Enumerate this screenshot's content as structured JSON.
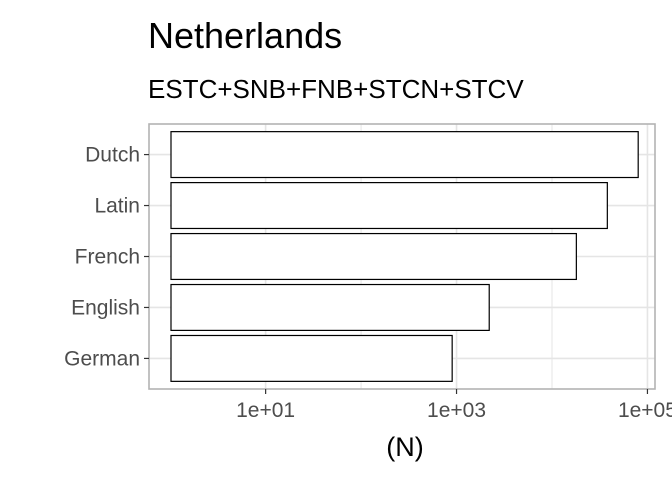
{
  "chart_data": {
    "type": "bar",
    "orientation": "horizontal",
    "title": "Netherlands",
    "subtitle": "ESTC+SNB+FNB+STCN+STCV",
    "xlabel": "(N)",
    "ylabel": "",
    "x_scale": "log10",
    "xlim": [
      0.6,
      120000
    ],
    "x_ticks": [
      10,
      1000,
      100000
    ],
    "x_tick_labels": [
      "1e+01",
      "1e+03",
      "1e+05"
    ],
    "categories": [
      "Dutch",
      "Latin",
      "French",
      "English",
      "German"
    ],
    "values": [
      80000,
      38000,
      18000,
      2200,
      900
    ],
    "bar_fill": "#ffffff",
    "bar_stroke": "#000000",
    "grid": true,
    "grid_color": "#e5e5e5",
    "panel_border_color": "#b3b3b3",
    "legend": "none"
  }
}
